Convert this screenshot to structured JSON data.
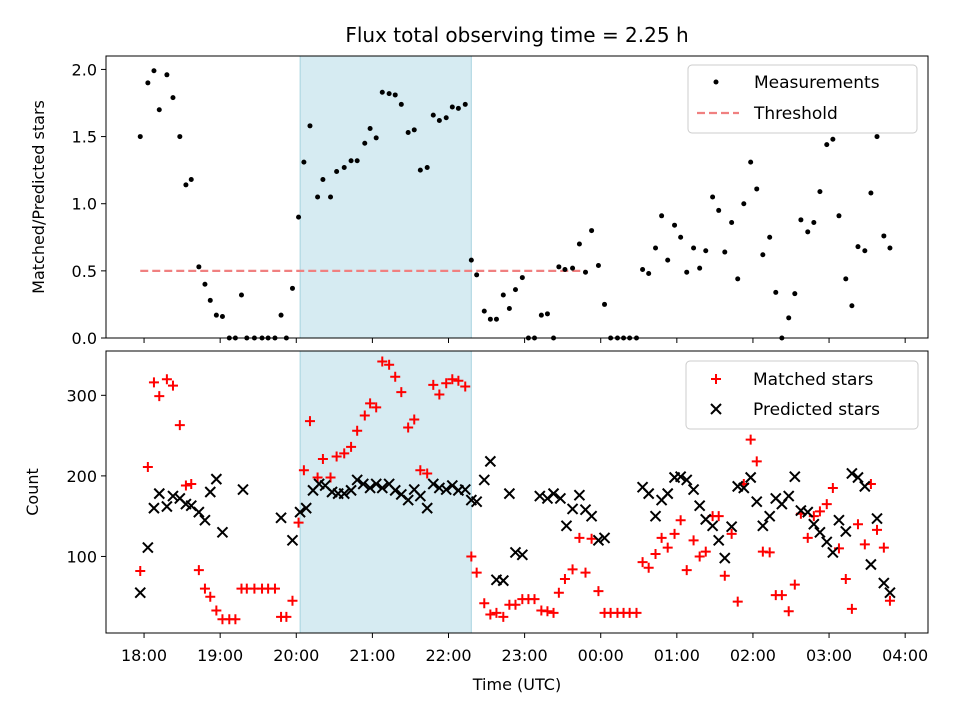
{
  "title": "Flux total observing time = 2.25 h",
  "colors": {
    "band": "#add8e6",
    "measure": "#000000",
    "threshold": "#f08080",
    "matched": "#ff0000",
    "predicted": "#000000"
  },
  "chart_data": [
    {
      "type": "scatter",
      "ylabel": "Matched/Predicted stars",
      "ylim": [
        0,
        2.1
      ],
      "yticks": [
        0.0,
        0.5,
        1.0,
        1.5,
        2.0
      ],
      "ytick_labels": [
        "0.0",
        "0.5",
        "1.0",
        "1.5",
        "2.0"
      ],
      "legend": [
        {
          "label": "Measurements",
          "marker": "dot"
        },
        {
          "label": "Threshold",
          "marker": "dashed-line"
        }
      ],
      "legend_position": "top-right",
      "highlight_span": [
        20.05,
        22.3
      ],
      "threshold": {
        "value": 0.5,
        "x": [
          17.95,
          23.8
        ]
      },
      "series": [
        {
          "name": "Measurements",
          "x": [
            17.95,
            18.05,
            18.13,
            18.2,
            18.3,
            18.38,
            18.47,
            18.55,
            18.62,
            18.72,
            18.8,
            18.87,
            18.95,
            19.03,
            19.12,
            19.2,
            19.28,
            19.35,
            19.45,
            19.55,
            19.63,
            19.72,
            19.8,
            19.87,
            19.95,
            20.03,
            20.1,
            20.18,
            20.28,
            20.35,
            20.45,
            20.53,
            20.63,
            20.72,
            20.8,
            20.9,
            20.97,
            21.05,
            21.13,
            21.22,
            21.3,
            21.38,
            21.47,
            21.55,
            21.63,
            21.72,
            21.8,
            21.88,
            21.97,
            22.05,
            22.13,
            22.22,
            22.3,
            22.37,
            22.47,
            22.55,
            22.63,
            22.72,
            22.8,
            22.88,
            22.97,
            23.05,
            23.13,
            23.22,
            23.3,
            23.38,
            23.45,
            23.53,
            23.63,
            23.72,
            23.8,
            23.88,
            23.97,
            24.05,
            24.13,
            24.22,
            24.3,
            24.38,
            24.47,
            24.55,
            24.63,
            24.72,
            24.8,
            24.88,
            24.97,
            25.05,
            25.13,
            25.22,
            25.3,
            25.38,
            25.47,
            25.55,
            25.63,
            25.72,
            25.8,
            25.88,
            25.97,
            26.05,
            26.13,
            26.22,
            26.3,
            26.38,
            26.47,
            26.55,
            26.63,
            26.72,
            26.8,
            26.88,
            26.97,
            27.05,
            27.13,
            27.22,
            27.3,
            27.38,
            27.47,
            27.55,
            27.63,
            27.72,
            27.8
          ],
          "y": [
            1.5,
            1.9,
            1.99,
            1.7,
            1.96,
            1.79,
            1.5,
            1.14,
            1.18,
            0.53,
            0.4,
            0.28,
            0.17,
            0.16,
            0.0,
            0.0,
            0.32,
            0.0,
            0.0,
            0.0,
            0.0,
            0.0,
            0.17,
            0.0,
            0.37,
            0.9,
            1.31,
            1.58,
            1.05,
            1.18,
            1.05,
            1.24,
            1.27,
            1.32,
            1.32,
            1.45,
            1.56,
            1.49,
            1.83,
            1.82,
            1.81,
            1.74,
            1.53,
            1.55,
            1.25,
            1.27,
            1.66,
            1.62,
            1.64,
            1.72,
            1.71,
            1.74,
            0.58,
            0.47,
            0.2,
            0.14,
            0.14,
            0.32,
            0.22,
            0.36,
            0.45,
            0.0,
            0.0,
            0.17,
            0.18,
            0.0,
            0.53,
            0.51,
            0.52,
            0.7,
            0.49,
            0.8,
            0.54,
            0.25,
            0.0,
            0.0,
            0.0,
            0.0,
            0.0,
            0.51,
            0.48,
            0.67,
            0.91,
            0.58,
            0.84,
            0.75,
            0.49,
            0.67,
            0.52,
            0.65,
            1.05,
            0.95,
            0.64,
            0.86,
            0.44,
            1.0,
            1.31,
            1.11,
            0.62,
            0.75,
            0.34,
            0.0,
            0.15,
            0.33,
            0.88,
            0.79,
            0.86,
            1.09,
            1.44,
            1.48,
            0.91,
            0.44,
            0.24,
            0.68,
            0.65,
            1.08,
            1.5,
            0.76,
            0.67
          ]
        }
      ]
    },
    {
      "type": "scatter",
      "ylabel": "Count",
      "xlabel": "Time (UTC)",
      "ylim": [
        5,
        355
      ],
      "yticks": [
        100,
        200,
        300
      ],
      "ytick_labels": [
        "100",
        "200",
        "300"
      ],
      "xlim": [
        17.5,
        28.3
      ],
      "xticks": [
        18,
        19,
        20,
        21,
        22,
        23,
        24,
        25,
        26,
        27,
        28
      ],
      "xtick_labels": [
        "18:00",
        "19:00",
        "20:00",
        "21:00",
        "22:00",
        "23:00",
        "00:00",
        "01:00",
        "02:00",
        "03:00",
        "04:00"
      ],
      "legend": [
        {
          "label": "Matched stars",
          "marker": "plus"
        },
        {
          "label": "Predicted stars",
          "marker": "x"
        }
      ],
      "legend_position": "top-right",
      "highlight_span": [
        20.05,
        22.3
      ],
      "series": [
        {
          "name": "Matched stars",
          "marker": "plus",
          "x": [
            17.95,
            18.05,
            18.13,
            18.2,
            18.3,
            18.38,
            18.47,
            18.55,
            18.62,
            18.72,
            18.8,
            18.87,
            18.95,
            19.03,
            19.12,
            19.2,
            19.28,
            19.35,
            19.45,
            19.55,
            19.63,
            19.72,
            19.8,
            19.87,
            19.95,
            20.03,
            20.1,
            20.18,
            20.28,
            20.35,
            20.45,
            20.53,
            20.63,
            20.72,
            20.8,
            20.9,
            20.97,
            21.05,
            21.13,
            21.22,
            21.3,
            21.38,
            21.47,
            21.55,
            21.63,
            21.72,
            21.8,
            21.88,
            21.97,
            22.05,
            22.13,
            22.22,
            22.3,
            22.37,
            22.47,
            22.55,
            22.63,
            22.72,
            22.8,
            22.88,
            22.97,
            23.05,
            23.13,
            23.22,
            23.3,
            23.38,
            23.45,
            23.53,
            23.63,
            23.72,
            23.8,
            23.88,
            23.97,
            24.05,
            24.13,
            24.22,
            24.3,
            24.38,
            24.47,
            24.55,
            24.63,
            24.72,
            24.8,
            24.88,
            24.97,
            25.05,
            25.13,
            25.22,
            25.3,
            25.38,
            25.47,
            25.55,
            25.63,
            25.72,
            25.8,
            25.88,
            25.97,
            26.05,
            26.13,
            26.22,
            26.3,
            26.38,
            26.47,
            26.55,
            26.63,
            26.72,
            26.8,
            26.88,
            26.97,
            27.05,
            27.13,
            27.22,
            27.3,
            27.38,
            27.47,
            27.55,
            27.63,
            27.72,
            27.8
          ],
          "y": [
            82,
            211,
            316,
            299,
            320,
            312,
            263,
            188,
            190,
            83,
            60,
            50,
            33,
            22,
            22,
            22,
            60,
            60,
            60,
            60,
            60,
            60,
            25,
            25,
            45,
            142,
            207,
            268,
            198,
            221,
            198,
            224,
            228,
            236,
            256,
            275,
            290,
            285,
            342,
            338,
            323,
            304,
            260,
            270,
            207,
            203,
            313,
            301,
            315,
            320,
            318,
            311,
            100,
            80,
            42,
            28,
            30,
            25,
            40,
            40,
            47,
            47,
            47,
            33,
            32,
            30,
            55,
            72,
            84,
            123,
            80,
            122,
            57,
            30,
            30,
            30,
            30,
            30,
            30,
            93,
            86,
            103,
            123,
            111,
            128,
            145,
            83,
            120,
            100,
            106,
            150,
            150,
            76,
            128,
            44,
            190,
            245,
            218,
            106,
            105,
            52,
            52,
            32,
            65,
            153,
            123,
            150,
            156,
            165,
            185,
            110,
            72,
            35,
            140,
            115,
            190,
            133,
            111,
            45
          ]
        },
        {
          "name": "Predicted stars",
          "marker": "x",
          "x": [
            17.95,
            18.05,
            18.13,
            18.2,
            18.3,
            18.38,
            18.47,
            18.55,
            18.62,
            18.72,
            18.8,
            18.87,
            18.95,
            19.03,
            19.3,
            19.8,
            19.95,
            20.05,
            20.13,
            20.22,
            20.3,
            20.38,
            20.47,
            20.55,
            20.63,
            20.72,
            20.8,
            20.88,
            20.97,
            21.05,
            21.13,
            21.22,
            21.3,
            21.38,
            21.47,
            21.55,
            21.63,
            21.72,
            21.8,
            21.88,
            21.97,
            22.05,
            22.13,
            22.22,
            22.3,
            22.37,
            22.47,
            22.55,
            22.63,
            22.72,
            22.8,
            22.88,
            22.97,
            23.2,
            23.3,
            23.38,
            23.47,
            23.55,
            23.63,
            23.72,
            23.8,
            23.88,
            23.97,
            24.05,
            24.55,
            24.63,
            24.72,
            24.8,
            24.88,
            24.97,
            25.05,
            25.13,
            25.22,
            25.3,
            25.38,
            25.47,
            25.55,
            25.63,
            25.72,
            25.8,
            25.88,
            25.97,
            26.05,
            26.13,
            26.22,
            26.3,
            26.38,
            26.47,
            26.55,
            26.63,
            26.72,
            26.8,
            26.88,
            26.97,
            27.05,
            27.13,
            27.22,
            27.3,
            27.38,
            27.47,
            27.55,
            27.63,
            27.72,
            27.8
          ],
          "y": [
            55,
            111,
            160,
            178,
            162,
            175,
            172,
            165,
            163,
            155,
            145,
            180,
            196,
            130,
            183,
            148,
            120,
            155,
            160,
            182,
            190,
            188,
            180,
            178,
            178,
            182,
            195,
            190,
            185,
            190,
            185,
            190,
            182,
            177,
            170,
            183,
            175,
            160,
            190,
            185,
            183,
            188,
            182,
            183,
            170,
            168,
            195,
            218,
            71,
            70,
            178,
            105,
            102,
            175,
            172,
            178,
            172,
            138,
            159,
            176,
            158,
            150,
            120,
            123,
            186,
            178,
            150,
            170,
            178,
            198,
            199,
            195,
            183,
            163,
            146,
            138,
            120,
            98,
            137,
            187,
            185,
            198,
            168,
            138,
            150,
            172,
            165,
            175,
            199,
            157,
            155,
            140,
            130,
            118,
            105,
            145,
            131,
            203,
            198,
            187,
            90,
            147,
            67,
            55
          ]
        }
      ]
    }
  ]
}
